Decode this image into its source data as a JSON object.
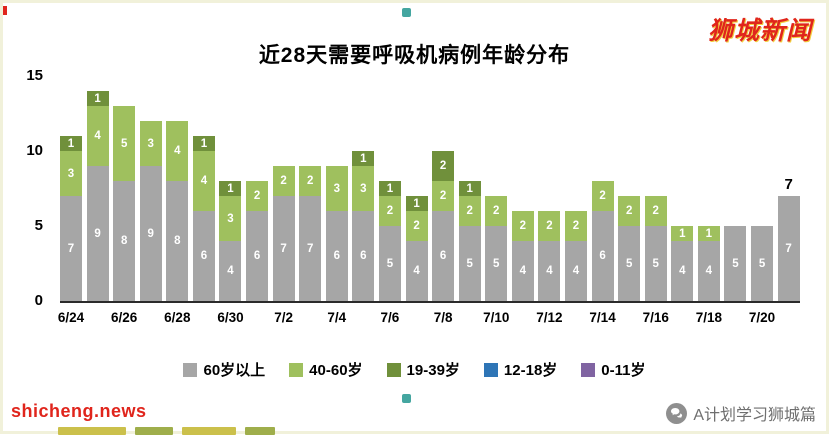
{
  "header": {
    "brand": "狮城新闻"
  },
  "chart_data": {
    "type": "bar",
    "stacked": true,
    "title": "近28天需要呼吸机病例年龄分布",
    "xlabel": "",
    "ylabel": "",
    "ylim": [
      0,
      15
    ],
    "yticks": [
      0,
      5,
      10,
      15
    ],
    "grid": false,
    "legend_position": "bottom",
    "categories": [
      "6/24",
      "6/25",
      "6/26",
      "6/27",
      "6/28",
      "6/29",
      "6/30",
      "7/1",
      "7/2",
      "7/3",
      "7/4",
      "7/5",
      "7/6",
      "7/7",
      "7/8",
      "7/9",
      "7/10",
      "7/11",
      "7/12",
      "7/13",
      "7/14",
      "7/15",
      "7/16",
      "7/17",
      "7/18",
      "7/19",
      "7/20",
      "7/21"
    ],
    "x_tick_labels": [
      "6/24",
      "6/26",
      "6/28",
      "6/30",
      "7/2",
      "7/4",
      "7/6",
      "7/8",
      "7/10",
      "7/12",
      "7/14",
      "7/16",
      "7/18",
      "7/20"
    ],
    "series": [
      {
        "name": "60岁以上",
        "color": "#a6a6a6",
        "values": [
          7,
          9,
          8,
          9,
          8,
          6,
          4,
          6,
          7,
          7,
          6,
          6,
          5,
          4,
          6,
          5,
          5,
          4,
          4,
          4,
          6,
          5,
          5,
          4,
          4,
          5,
          5,
          7
        ]
      },
      {
        "name": "40-60岁",
        "color": "#9fc05e",
        "values": [
          3,
          4,
          5,
          3,
          4,
          4,
          3,
          2,
          2,
          2,
          3,
          3,
          2,
          2,
          2,
          2,
          2,
          2,
          2,
          2,
          2,
          2,
          2,
          1,
          1,
          0,
          0,
          0
        ]
      },
      {
        "name": "19-39岁",
        "color": "#70903b",
        "values": [
          1,
          1,
          0,
          0,
          0,
          1,
          1,
          0,
          0,
          0,
          0,
          1,
          1,
          1,
          2,
          1,
          0,
          0,
          0,
          0,
          0,
          0,
          0,
          0,
          0,
          0,
          0,
          0
        ]
      },
      {
        "name": "12-18岁",
        "color": "#2e75b6",
        "values": [
          0,
          0,
          0,
          0,
          0,
          0,
          0,
          0,
          0,
          0,
          0,
          0,
          0,
          0,
          0,
          0,
          0,
          0,
          0,
          0,
          0,
          0,
          0,
          0,
          0,
          0,
          0,
          0
        ]
      },
      {
        "name": "0-11岁",
        "color": "#8064a2",
        "values": [
          0,
          0,
          0,
          0,
          0,
          0,
          0,
          0,
          0,
          0,
          0,
          0,
          0,
          0,
          0,
          0,
          0,
          0,
          0,
          0,
          0,
          0,
          0,
          0,
          0,
          0,
          0,
          0
        ]
      }
    ],
    "annotation": {
      "index": 27,
      "text": "7"
    }
  },
  "footer": {
    "watermark": "shicheng.news",
    "account": "A计划学习狮城篇"
  }
}
